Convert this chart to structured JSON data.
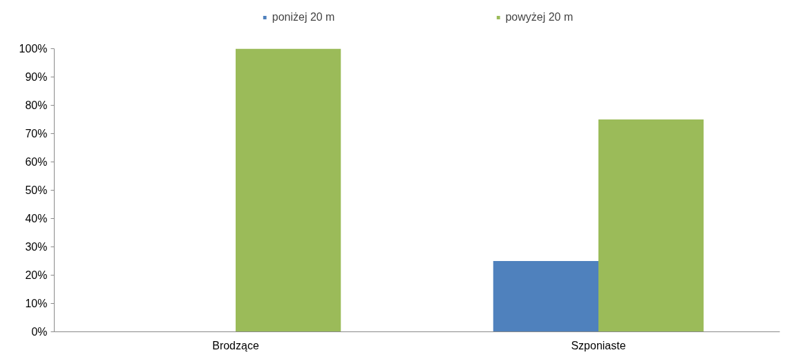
{
  "chart_data": {
    "type": "bar",
    "categories": [
      "Brodzące",
      "Szponiaste"
    ],
    "series": [
      {
        "name": "poniżej 20 m",
        "color": "#4f81bd",
        "values": [
          0,
          25
        ]
      },
      {
        "name": "powyżej 20 m",
        "color": "#9bbb59",
        "values": [
          100,
          75
        ]
      }
    ],
    "ylim": [
      0,
      100
    ],
    "yticks": [
      {
        "value": 0,
        "label": "0%"
      },
      {
        "value": 10,
        "label": "10%"
      },
      {
        "value": 20,
        "label": "20%"
      },
      {
        "value": 30,
        "label": "30%"
      },
      {
        "value": 40,
        "label": "40%"
      },
      {
        "value": 50,
        "label": "50%"
      },
      {
        "value": 60,
        "label": "60%"
      },
      {
        "value": 70,
        "label": "70%"
      },
      {
        "value": 80,
        "label": "80%"
      },
      {
        "value": 90,
        "label": "90%"
      },
      {
        "value": 100,
        "label": "100%"
      }
    ],
    "grid": false,
    "legend": "top"
  }
}
